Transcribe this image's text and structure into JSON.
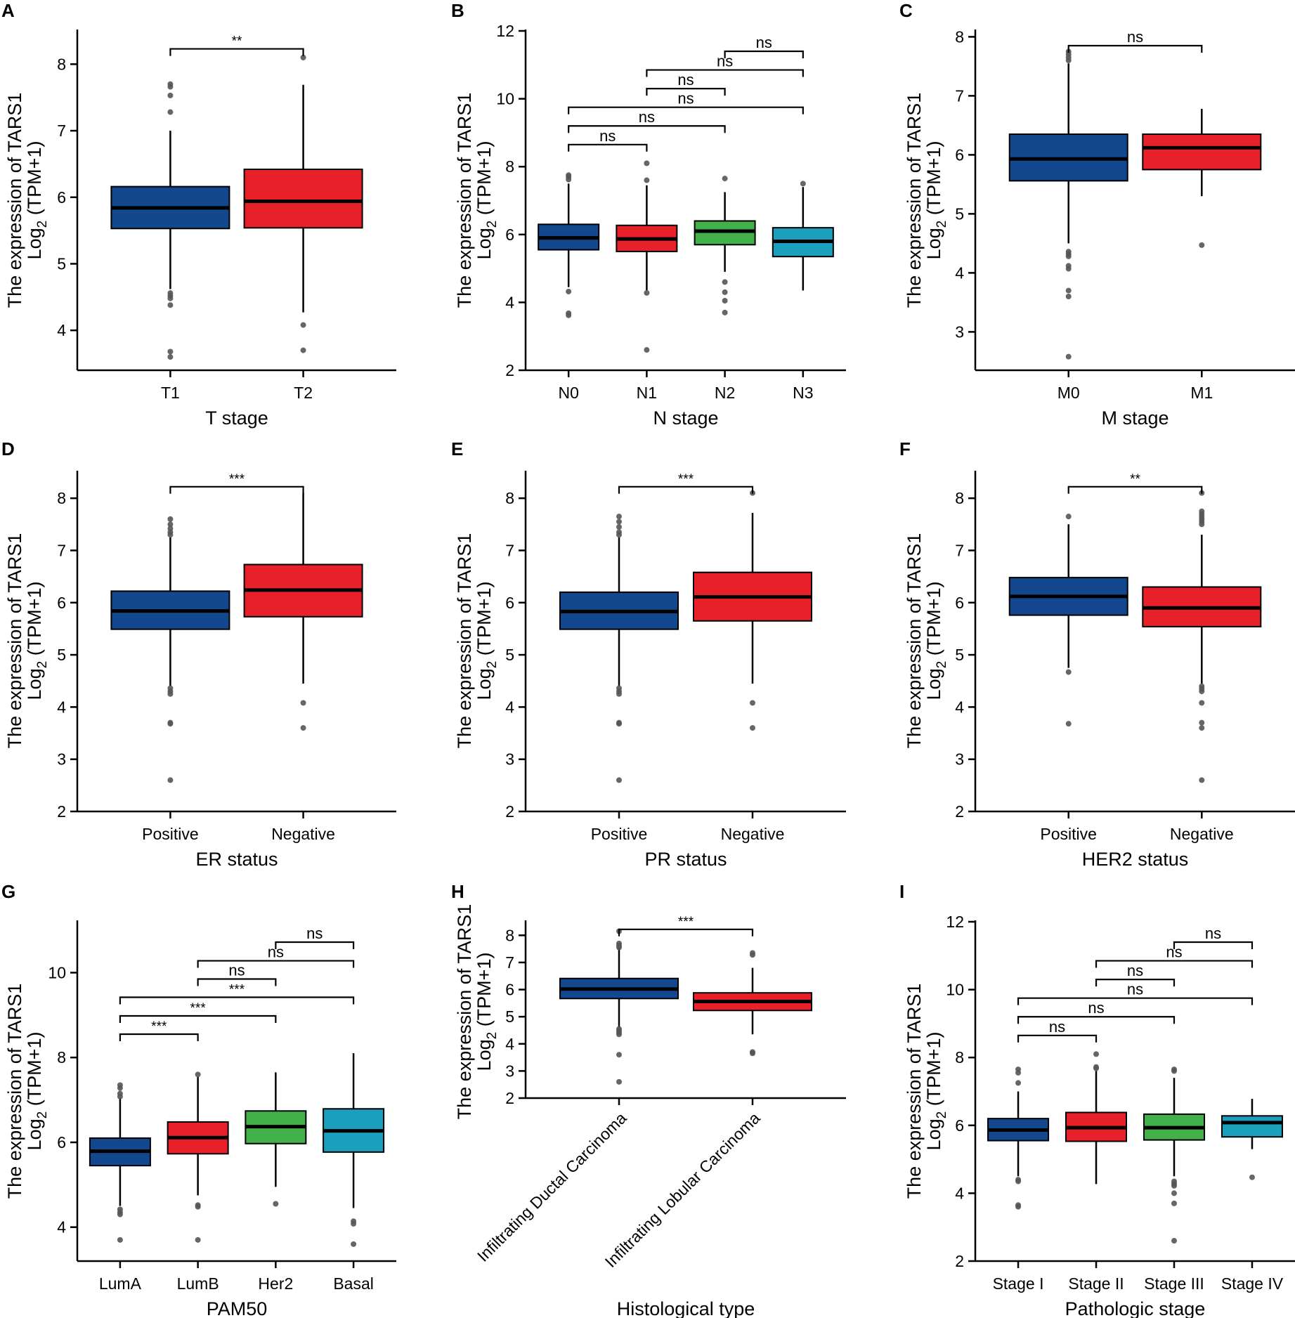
{
  "colors": {
    "blue": "#13488e",
    "red": "#e8202a",
    "green": "#42b14a",
    "teal": "#1aa0bd",
    "outlier": "#555555",
    "axis": "#000000"
  },
  "y_axis_label_line1": "The expression of TARS1",
  "y_axis_label_line2": "Log",
  "y_axis_label_sub": "2",
  "y_axis_label_line2_rest": " (TPM+1)",
  "chart_data": [
    {
      "panel": "A",
      "type": "box",
      "xlabel": "T stage",
      "ylim": [
        3.4,
        8.5
      ],
      "yticks": [
        4,
        5,
        6,
        7,
        8
      ],
      "categories": [
        "T1",
        "T2"
      ],
      "colors": [
        "blue",
        "red"
      ],
      "boxes": [
        {
          "q1": 5.53,
          "median": 5.84,
          "q3": 6.16,
          "wlo": 4.62,
          "whi": 7.0,
          "outliers": [
            7.7,
            7.66,
            7.53,
            7.28,
            4.56,
            4.52,
            4.48,
            4.38,
            3.68,
            3.6
          ]
        },
        {
          "q1": 5.54,
          "median": 5.94,
          "q3": 6.42,
          "wlo": 4.27,
          "whi": 7.69,
          "outliers": [
            8.1,
            4.08,
            3.7
          ]
        }
      ],
      "brackets": [
        {
          "a": 0,
          "b": 1,
          "y": 8.23,
          "label": "**"
        }
      ]
    },
    {
      "panel": "B",
      "type": "box",
      "xlabel": "N stage",
      "ylim": [
        2,
        12
      ],
      "yticks": [
        2,
        4,
        6,
        8,
        10,
        12
      ],
      "categories": [
        "N0",
        "N1",
        "N2",
        "N3"
      ],
      "colors": [
        "blue",
        "red",
        "green",
        "teal"
      ],
      "boxes": [
        {
          "q1": 5.55,
          "median": 5.9,
          "q3": 6.3,
          "wlo": 4.45,
          "whi": 7.5,
          "outliers": [
            7.75,
            7.7,
            7.62,
            4.32,
            3.68,
            3.62
          ]
        },
        {
          "q1": 5.5,
          "median": 5.87,
          "q3": 6.27,
          "wlo": 4.35,
          "whi": 7.45,
          "outliers": [
            8.1,
            7.6,
            4.28,
            2.6
          ]
        },
        {
          "q1": 5.7,
          "median": 6.1,
          "q3": 6.4,
          "wlo": 4.9,
          "whi": 7.25,
          "outliers": [
            7.65,
            4.6,
            4.3,
            4.05,
            3.7
          ]
        },
        {
          "q1": 5.35,
          "median": 5.8,
          "q3": 6.2,
          "wlo": 4.35,
          "whi": 7.4,
          "outliers": [
            7.5
          ]
        }
      ],
      "brackets": [
        {
          "a": 0,
          "b": 1,
          "y": 8.65,
          "label": "ns"
        },
        {
          "a": 0,
          "b": 2,
          "y": 9.2,
          "label": "ns"
        },
        {
          "a": 0,
          "b": 3,
          "y": 9.75,
          "label": "ns"
        },
        {
          "a": 1,
          "b": 2,
          "y": 10.3,
          "label": "ns"
        },
        {
          "a": 1,
          "b": 3,
          "y": 10.85,
          "label": "ns"
        },
        {
          "a": 2,
          "b": 3,
          "y": 11.4,
          "label": "ns"
        }
      ]
    },
    {
      "panel": "C",
      "type": "box",
      "xlabel": "M stage",
      "ylim": [
        2.35,
        8.1
      ],
      "yticks": [
        3,
        4,
        5,
        6,
        7,
        8
      ],
      "categories": [
        "M0",
        "M1"
      ],
      "colors": [
        "blue",
        "red"
      ],
      "boxes": [
        {
          "q1": 5.56,
          "median": 5.93,
          "q3": 6.35,
          "wlo": 4.5,
          "whi": 7.55,
          "outliers": [
            7.75,
            7.7,
            7.65,
            7.6,
            4.36,
            4.32,
            4.28,
            4.12,
            4.07,
            3.7,
            3.6,
            2.58
          ]
        },
        {
          "q1": 5.75,
          "median": 6.12,
          "q3": 6.35,
          "wlo": 5.3,
          "whi": 6.78,
          "outliers": [
            4.47
          ]
        }
      ],
      "brackets": [
        {
          "a": 0,
          "b": 1,
          "y": 7.85,
          "label": "ns"
        }
      ]
    },
    {
      "panel": "D",
      "type": "box",
      "xlabel": "ER status",
      "ylim": [
        2,
        8.5
      ],
      "yticks": [
        2,
        3,
        4,
        5,
        6,
        7,
        8
      ],
      "categories": [
        "Positive",
        "Negative"
      ],
      "colors": [
        "blue",
        "red"
      ],
      "boxes": [
        {
          "q1": 5.49,
          "median": 5.84,
          "q3": 6.22,
          "wlo": 4.4,
          "whi": 7.25,
          "outliers": [
            7.6,
            7.5,
            7.42,
            7.35,
            7.3,
            4.36,
            4.3,
            4.25,
            3.7,
            3.68,
            2.6
          ]
        },
        {
          "q1": 5.73,
          "median": 6.24,
          "q3": 6.73,
          "wlo": 4.45,
          "whi": 8.1,
          "outliers": [
            4.08,
            3.6
          ]
        }
      ],
      "brackets": [
        {
          "a": 0,
          "b": 1,
          "y": 8.22,
          "label": "***"
        }
      ]
    },
    {
      "panel": "E",
      "type": "box",
      "xlabel": "PR status",
      "ylim": [
        2,
        8.5
      ],
      "yticks": [
        2,
        3,
        4,
        5,
        6,
        7,
        8
      ],
      "categories": [
        "Positive",
        "Negative"
      ],
      "colors": [
        "blue",
        "red"
      ],
      "boxes": [
        {
          "q1": 5.49,
          "median": 5.83,
          "q3": 6.2,
          "wlo": 4.4,
          "whi": 7.25,
          "outliers": [
            7.65,
            7.55,
            7.45,
            7.35,
            7.3,
            4.36,
            4.3,
            4.25,
            3.7,
            3.68,
            2.6
          ]
        },
        {
          "q1": 5.65,
          "median": 6.11,
          "q3": 6.58,
          "wlo": 4.45,
          "whi": 7.72,
          "outliers": [
            8.1,
            4.08,
            3.6
          ]
        }
      ],
      "brackets": [
        {
          "a": 0,
          "b": 1,
          "y": 8.22,
          "label": "***"
        }
      ]
    },
    {
      "panel": "F",
      "type": "box",
      "xlabel": "HER2 status",
      "ylim": [
        2,
        8.5
      ],
      "yticks": [
        2,
        3,
        4,
        5,
        6,
        7,
        8
      ],
      "categories": [
        "Positive",
        "Negative"
      ],
      "colors": [
        "blue",
        "red"
      ],
      "boxes": [
        {
          "q1": 5.76,
          "median": 6.12,
          "q3": 6.48,
          "wlo": 4.75,
          "whi": 7.5,
          "outliers": [
            7.65,
            4.67,
            3.68
          ]
        },
        {
          "q1": 5.54,
          "median": 5.9,
          "q3": 6.3,
          "wlo": 4.45,
          "whi": 7.3,
          "outliers": [
            8.1,
            7.75,
            7.7,
            7.65,
            7.6,
            7.55,
            7.5,
            4.4,
            4.35,
            4.3,
            4.08,
            3.7,
            3.6,
            2.6
          ]
        }
      ],
      "brackets": [
        {
          "a": 0,
          "b": 1,
          "y": 8.22,
          "label": "**"
        }
      ]
    },
    {
      "panel": "G",
      "type": "box",
      "xlabel": "PAM50",
      "ylim": [
        3.2,
        11.2
      ],
      "yticks": [
        4,
        6,
        8,
        10
      ],
      "categories": [
        "LumA",
        "LumB",
        "Her2",
        "Basal"
      ],
      "colors": [
        "blue",
        "red",
        "green",
        "teal"
      ],
      "boxes": [
        {
          "q1": 5.45,
          "median": 5.79,
          "q3": 6.1,
          "wlo": 4.5,
          "whi": 7.05,
          "outliers": [
            7.35,
            7.28,
            7.15,
            7.08,
            4.42,
            4.35,
            4.3,
            3.7
          ]
        },
        {
          "q1": 5.73,
          "median": 6.11,
          "q3": 6.48,
          "wlo": 4.75,
          "whi": 7.55,
          "outliers": [
            7.6,
            4.52,
            4.48,
            3.7
          ]
        },
        {
          "q1": 5.97,
          "median": 6.37,
          "q3": 6.74,
          "wlo": 4.95,
          "whi": 7.65,
          "outliers": [
            4.55
          ]
        },
        {
          "q1": 5.77,
          "median": 6.27,
          "q3": 6.79,
          "wlo": 4.45,
          "whi": 8.1,
          "outliers": [
            4.14,
            4.08,
            3.6
          ]
        }
      ],
      "brackets": [
        {
          "a": 0,
          "b": 1,
          "y": 8.55,
          "label": "***"
        },
        {
          "a": 0,
          "b": 2,
          "y": 8.98,
          "label": "***"
        },
        {
          "a": 0,
          "b": 3,
          "y": 9.42,
          "label": "***"
        },
        {
          "a": 1,
          "b": 2,
          "y": 9.85,
          "label": "ns"
        },
        {
          "a": 1,
          "b": 3,
          "y": 10.28,
          "label": "ns"
        },
        {
          "a": 2,
          "b": 3,
          "y": 10.72,
          "label": "ns"
        }
      ]
    },
    {
      "panel": "H",
      "type": "box",
      "xlabel": "Histological type",
      "ylim": [
        2,
        8.5
      ],
      "yticks": [
        2,
        3,
        4,
        5,
        6,
        7,
        8
      ],
      "categories": [
        "Infiltrating Ductal Carcinoma",
        "Infiltrating Lobular Carcinoma"
      ],
      "colors": [
        "blue",
        "red"
      ],
      "rotated_ticks": true,
      "boxes": [
        {
          "q1": 5.67,
          "median": 6.02,
          "q3": 6.41,
          "wlo": 4.6,
          "whi": 7.55,
          "outliers": [
            8.15,
            7.7,
            7.62,
            7.55,
            4.55,
            4.48,
            4.42,
            4.35,
            3.6,
            2.6
          ]
        },
        {
          "q1": 5.23,
          "median": 5.56,
          "q3": 5.88,
          "wlo": 4.35,
          "whi": 6.8,
          "outliers": [
            7.35,
            7.28,
            3.7,
            3.65
          ]
        }
      ],
      "brackets": [
        {
          "a": 0,
          "b": 1,
          "y": 8.22,
          "label": "***"
        }
      ]
    },
    {
      "panel": "I",
      "type": "box",
      "xlabel": "Pathologic stage",
      "ylim": [
        2,
        12
      ],
      "yticks": [
        2,
        4,
        6,
        8,
        10,
        12
      ],
      "categories": [
        "Stage I",
        "Stage II",
        "Stage III",
        "Stage IV"
      ],
      "colors": [
        "blue",
        "red",
        "green",
        "teal"
      ],
      "boxes": [
        {
          "q1": 5.55,
          "median": 5.86,
          "q3": 6.2,
          "wlo": 4.5,
          "whi": 7.0,
          "outliers": [
            7.65,
            7.55,
            7.25,
            4.4,
            4.35,
            3.65,
            3.6
          ]
        },
        {
          "q1": 5.53,
          "median": 5.93,
          "q3": 6.38,
          "wlo": 4.27,
          "whi": 7.6,
          "outliers": [
            8.1,
            7.72,
            7.68
          ]
        },
        {
          "q1": 5.57,
          "median": 5.93,
          "q3": 6.33,
          "wlo": 4.5,
          "whi": 7.4,
          "outliers": [
            7.65,
            7.6,
            4.35,
            4.28,
            4.22,
            4.0,
            3.7,
            2.6
          ]
        },
        {
          "q1": 5.66,
          "median": 6.08,
          "q3": 6.28,
          "wlo": 5.3,
          "whi": 6.78,
          "outliers": [
            4.47
          ]
        }
      ],
      "brackets": [
        {
          "a": 0,
          "b": 1,
          "y": 8.65,
          "label": "ns"
        },
        {
          "a": 0,
          "b": 2,
          "y": 9.2,
          "label": "ns"
        },
        {
          "a": 0,
          "b": 3,
          "y": 9.75,
          "label": "ns"
        },
        {
          "a": 1,
          "b": 2,
          "y": 10.3,
          "label": "ns"
        },
        {
          "a": 1,
          "b": 3,
          "y": 10.85,
          "label": "ns"
        },
        {
          "a": 2,
          "b": 3,
          "y": 11.4,
          "label": "ns"
        }
      ]
    }
  ]
}
